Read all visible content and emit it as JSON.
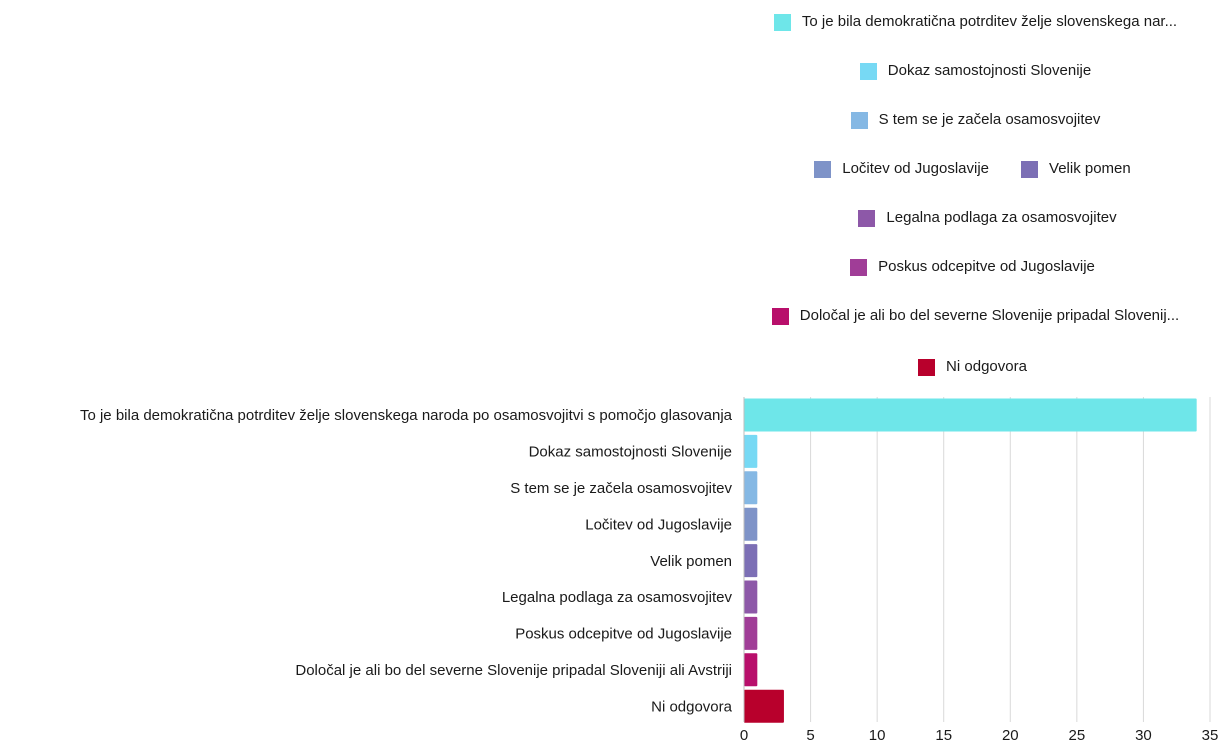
{
  "chart_data": {
    "type": "bar",
    "orientation": "horizontal",
    "categories": [
      "To je bila demokratična potrditev želje slovenskega naroda po osamosvojitvi s pomočjo glasovanja",
      "Dokaz samostojnosti Slovenije",
      "S tem se je začela osamosvojitev",
      "Ločitev od Jugoslavije",
      "Velik pomen",
      "Legalna podlaga za osamosvojitev",
      "Poskus odcepitve od Jugoslavije",
      "Določal je ali bo del severne Slovenije pripadal Sloveniji ali Avstriji",
      "Ni odgovora"
    ],
    "values": [
      34,
      1,
      1,
      1,
      1,
      1,
      1,
      1,
      3
    ],
    "colors": [
      "#6ee6e9",
      "#77d9f4",
      "#85b8e4",
      "#7e93c8",
      "#7c6fb5",
      "#8d58a8",
      "#a03d97",
      "#b80f6b",
      "#b8002c"
    ],
    "xlim": [
      0,
      35
    ],
    "xticks": [
      0,
      5,
      10,
      15,
      20,
      25,
      30,
      35
    ],
    "grid": true,
    "legend_position": "top",
    "legend_labels": [
      "To je bila demokratična potrditev želje slovenskega nar...",
      "Dokaz samostojnosti Slovenije",
      "S tem se je začela osamosvojitev",
      "Ločitev od Jugoslavije",
      "Velik pomen",
      "Legalna podlaga za osamosvojitev",
      "Poskus odcepitve od Jugoslavije",
      "Določal je ali bo del severne Slovenije pripadal Slovenij...",
      "Ni odgovora"
    ]
  }
}
